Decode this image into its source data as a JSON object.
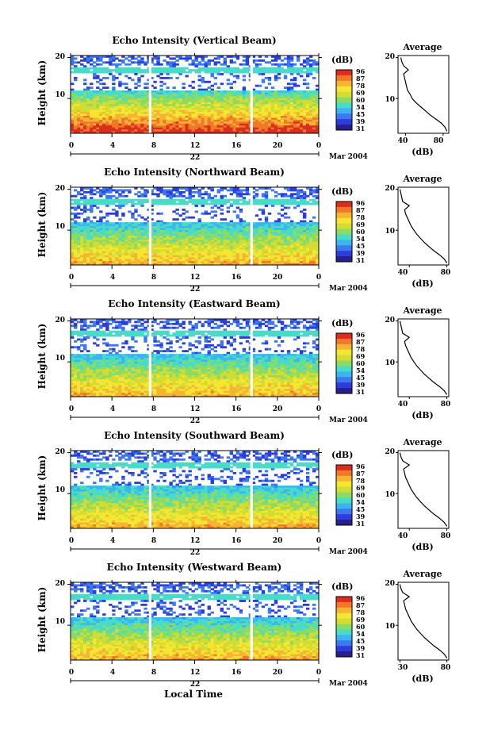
{
  "figure": {
    "date_label": "Mar 2004",
    "day_label": "22",
    "xlabel": "Local Time",
    "ylabel": "Height (km)",
    "avg_title": "Average",
    "avg_xlabel": "(dB)",
    "colorbar_unit": "(dB)",
    "colorbar_ticks": [
      "96",
      "87",
      "78",
      "69",
      "60",
      "54",
      "45",
      "39",
      "31"
    ]
  },
  "chart_data": [
    {
      "type": "heatmap",
      "title": "Echo Intensity (Vertical Beam)",
      "xlabel": "",
      "ylabel": "Height (km)",
      "x_ticks": [
        0,
        4,
        8,
        12,
        16,
        20,
        24
      ],
      "xlim": [
        0,
        24
      ],
      "y_ticks": [
        10,
        20
      ],
      "ylim": [
        1.5,
        20.5
      ],
      "z_unit": "dB",
      "data_gaps_hours": [
        7.7,
        17.5
      ],
      "profile": {
        "x_ticks": [
          40,
          80
        ],
        "xlim": [
          32,
          86
        ],
        "heights_km": [
          2,
          3,
          4,
          5,
          6,
          7,
          8,
          9,
          10,
          11,
          12,
          13,
          14,
          15,
          16,
          17,
          18,
          19,
          20
        ],
        "values_db": [
          84,
          82,
          78,
          72,
          66,
          61,
          56,
          51,
          47,
          45,
          42,
          41,
          40,
          39,
          38,
          43,
          38,
          36,
          35
        ]
      }
    },
    {
      "type": "heatmap",
      "title": "Echo Intensity (Northward Beam)",
      "xlabel": "",
      "ylabel": "Height (km)",
      "x_ticks": [
        0,
        4,
        8,
        12,
        16,
        20,
        24
      ],
      "xlim": [
        0,
        24
      ],
      "y_ticks": [
        10,
        20
      ],
      "ylim": [
        1.5,
        20.5
      ],
      "z_unit": "dB",
      "data_gaps_hours": [
        7.7,
        17.5
      ],
      "profile": {
        "x_ticks": [
          40,
          80
        ],
        "xlim": [
          28,
          82
        ],
        "heights_km": [
          2,
          3,
          4,
          5,
          6,
          7,
          8,
          9,
          10,
          11,
          12,
          13,
          14,
          15,
          16,
          17,
          18,
          19,
          20
        ],
        "values_db": [
          80,
          77,
          72,
          66,
          61,
          56,
          52,
          48,
          45,
          42,
          40,
          38,
          36,
          35,
          40,
          33,
          32,
          31,
          30
        ]
      }
    },
    {
      "type": "heatmap",
      "title": "Echo Intensity (Eastward Beam)",
      "xlabel": "",
      "ylabel": "Height (km)",
      "x_ticks": [
        0,
        4,
        8,
        12,
        16,
        20,
        24
      ],
      "xlim": [
        0,
        24
      ],
      "y_ticks": [
        10,
        20
      ],
      "ylim": [
        1.5,
        20.5
      ],
      "z_unit": "dB",
      "data_gaps_hours": [
        7.7,
        17.5
      ],
      "profile": {
        "x_ticks": [
          40,
          80
        ],
        "xlim": [
          28,
          82
        ],
        "heights_km": [
          2,
          3,
          4,
          5,
          6,
          7,
          8,
          9,
          10,
          11,
          12,
          13,
          14,
          15,
          16,
          17,
          18,
          19,
          20
        ],
        "values_db": [
          80,
          77,
          72,
          66,
          61,
          56,
          52,
          48,
          45,
          42,
          40,
          38,
          36,
          35,
          40,
          33,
          32,
          31,
          30
        ]
      }
    },
    {
      "type": "heatmap",
      "title": "Echo Intensity (Southward Beam)",
      "xlabel": "",
      "ylabel": "Height (km)",
      "x_ticks": [
        0,
        4,
        8,
        12,
        16,
        20,
        24
      ],
      "xlim": [
        0,
        24
      ],
      "y_ticks": [
        10,
        20
      ],
      "ylim": [
        1.5,
        20.5
      ],
      "z_unit": "dB",
      "data_gaps_hours": [
        7.7,
        17.5
      ],
      "profile": {
        "x_ticks": [
          40,
          80
        ],
        "xlim": [
          28,
          82
        ],
        "heights_km": [
          2,
          3,
          4,
          5,
          6,
          7,
          8,
          9,
          10,
          11,
          12,
          13,
          14,
          15,
          16,
          17,
          18,
          19,
          20
        ],
        "values_db": [
          80,
          77,
          72,
          66,
          61,
          56,
          52,
          48,
          45,
          42,
          40,
          38,
          36,
          35,
          34,
          40,
          33,
          31,
          30
        ]
      }
    },
    {
      "type": "heatmap",
      "title": "Echo Intensity (Westward Beam)",
      "xlabel": "Local Time",
      "ylabel": "Height (km)",
      "x_ticks": [
        0,
        4,
        8,
        12,
        16,
        20,
        24
      ],
      "xlim": [
        0,
        24
      ],
      "y_ticks": [
        10,
        20
      ],
      "ylim": [
        1.5,
        20.5
      ],
      "z_unit": "dB",
      "data_gaps_hours": [
        7.7,
        17.5
      ],
      "profile": {
        "x_ticks": [
          30,
          80
        ],
        "xlim": [
          28,
          82
        ],
        "heights_km": [
          2,
          3,
          4,
          5,
          6,
          7,
          8,
          9,
          10,
          11,
          12,
          13,
          14,
          15,
          16,
          17,
          18,
          19,
          20
        ],
        "values_db": [
          80,
          77,
          72,
          66,
          61,
          56,
          52,
          48,
          45,
          42,
          40,
          38,
          36,
          35,
          34,
          40,
          33,
          31,
          30
        ]
      }
    }
  ],
  "colors": {
    "scale": [
      "#281e8c",
      "#2d3cdc",
      "#3c78f0",
      "#3cb4f0",
      "#46dcc8",
      "#8cdc64",
      "#d2dc32",
      "#f5e632",
      "#f5b432",
      "#f07828",
      "#dc2d1e"
    ]
  }
}
